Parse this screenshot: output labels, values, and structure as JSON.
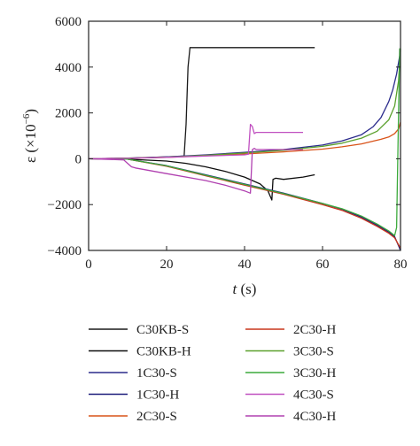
{
  "chart_data": {
    "type": "line",
    "title": "",
    "xlabel_main": "t",
    "xlabel_unit": " (s)",
    "ylabel_main": "ε (×10",
    "ylabel_exp": "−6",
    "ylabel_close": ")",
    "xlim": [
      0,
      80
    ],
    "ylim": [
      -4000,
      6000
    ],
    "xticks": [
      0,
      20,
      40,
      60,
      80
    ],
    "xtick_labels": [
      "0",
      "20",
      "40",
      "60",
      "80"
    ],
    "yticks": [
      -4000,
      -2000,
      0,
      2000,
      4000,
      6000
    ],
    "ytick_labels": [
      "−4000",
      "−2000",
      "0",
      "2000",
      "4000",
      "6000"
    ],
    "grid": false,
    "legend_position": "below",
    "series": [
      {
        "name": "C30KB-S",
        "color": "#1a1a1a",
        "x": [
          0,
          10,
          20,
          23,
          24.5,
          25,
          25.5,
          26,
          58
        ],
        "y": [
          0,
          30,
          80,
          100,
          120,
          1500,
          4000,
          4850,
          4850
        ]
      },
      {
        "name": "C30KB-H",
        "color": "#0d0d0d",
        "x": [
          0,
          10,
          20,
          25,
          30,
          35,
          40,
          44,
          46,
          47,
          47.3,
          48,
          50,
          55,
          58
        ],
        "y": [
          0,
          -20,
          -100,
          -200,
          -350,
          -550,
          -800,
          -1100,
          -1400,
          -1800,
          -900,
          -850,
          -900,
          -800,
          -700
        ]
      },
      {
        "name": "1C30-S",
        "color": "#2b2b8c",
        "x": [
          0,
          10,
          20,
          30,
          40,
          50,
          60,
          65,
          70,
          73,
          75,
          77,
          78,
          79,
          79.5,
          80
        ],
        "y": [
          0,
          20,
          80,
          170,
          280,
          400,
          600,
          780,
          1050,
          1400,
          1800,
          2500,
          3000,
          3700,
          4200,
          4700
        ]
      },
      {
        "name": "1C30-H",
        "color": "#1c1c7a",
        "x": [
          0,
          10,
          20,
          30,
          40,
          50,
          60,
          65,
          70,
          74,
          77,
          78.5,
          79.5,
          80
        ],
        "y": [
          0,
          -20,
          -300,
          -700,
          -1100,
          -1500,
          -1950,
          -2200,
          -2550,
          -2900,
          -3200,
          -3400,
          -3800,
          -4000
        ]
      },
      {
        "name": "2C30-S",
        "color": "#d95319",
        "x": [
          0,
          10,
          20,
          30,
          40,
          50,
          60,
          65,
          70,
          75,
          77,
          78.5,
          79.5,
          80
        ],
        "y": [
          0,
          20,
          60,
          130,
          210,
          300,
          420,
          520,
          650,
          850,
          950,
          1100,
          1300,
          1600
        ]
      },
      {
        "name": "2C30-H",
        "color": "#c8361c",
        "x": [
          0,
          10,
          20,
          30,
          40,
          50,
          60,
          65,
          70,
          74,
          77,
          78.5,
          79.5,
          80
        ],
        "y": [
          0,
          -20,
          -330,
          -740,
          -1150,
          -1550,
          -2000,
          -2250,
          -2600,
          -2950,
          -3250,
          -3450,
          -3750,
          -3900
        ]
      },
      {
        "name": "3C30-S",
        "color": "#5aa02c",
        "x": [
          0,
          10,
          20,
          30,
          40,
          50,
          60,
          65,
          70,
          74,
          77,
          78.5,
          79.5,
          80
        ],
        "y": [
          0,
          20,
          70,
          150,
          250,
          370,
          540,
          680,
          900,
          1200,
          1700,
          2300,
          3400,
          4800
        ]
      },
      {
        "name": "3C30-H",
        "color": "#3caa3c",
        "x": [
          0,
          10,
          20,
          30,
          40,
          50,
          60,
          65,
          70,
          74,
          77,
          78.5,
          79,
          79.5,
          79.8,
          80
        ],
        "y": [
          0,
          -20,
          -310,
          -720,
          -1120,
          -1520,
          -1950,
          -2180,
          -2500,
          -2850,
          -3150,
          -3350,
          -3000,
          2000,
          4800,
          4800
        ]
      },
      {
        "name": "4C30-S",
        "color": "#c050c0",
        "x": [
          0,
          10,
          20,
          30,
          40,
          41,
          41.5,
          42,
          42.5,
          43,
          45,
          50,
          55
        ],
        "y": [
          0,
          20,
          60,
          120,
          170,
          200,
          1500,
          1400,
          1100,
          1150,
          1150,
          1150,
          1150
        ]
      },
      {
        "name": "4C30-H",
        "color": "#b040b0",
        "x": [
          0,
          9,
          10,
          11,
          12,
          20,
          30,
          35,
          40,
          41.5,
          42,
          42.5,
          43,
          45,
          50,
          55
        ],
        "y": [
          0,
          -50,
          -200,
          -350,
          -400,
          -650,
          -950,
          -1150,
          -1400,
          -1500,
          400,
          450,
          400,
          400,
          400,
          400
        ]
      }
    ]
  }
}
